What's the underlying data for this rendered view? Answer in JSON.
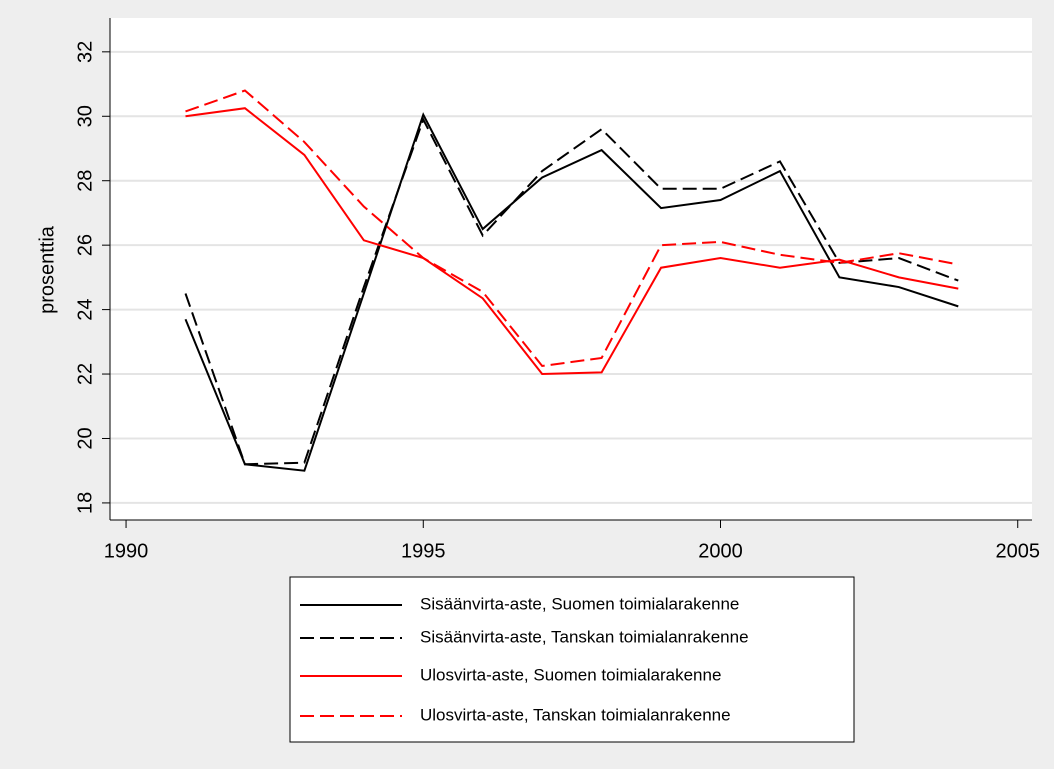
{
  "chart_data": {
    "type": "line",
    "ylabel": "prosenttia",
    "x": [
      1991,
      1992,
      1993,
      1994,
      1995,
      1996,
      1997,
      1998,
      1999,
      2000,
      2001,
      2002,
      2003,
      2004
    ],
    "series": [
      {
        "name": "Sisäänvirta-aste, Suomen toimialarakenne",
        "color": "#000000",
        "dash": false,
        "values": [
          23.7,
          19.2,
          19.0,
          24.5,
          30.05,
          26.5,
          28.1,
          28.95,
          27.15,
          27.4,
          28.3,
          25.0,
          24.7,
          24.1
        ]
      },
      {
        "name": "Sisäänvirta-aste, Tanskan toimialanrakenne",
        "color": "#000000",
        "dash": true,
        "values": [
          24.5,
          19.2,
          19.25,
          24.7,
          29.9,
          26.3,
          28.3,
          29.6,
          27.75,
          27.75,
          28.6,
          25.45,
          25.6,
          24.9
        ]
      },
      {
        "name": "Ulosvirta-aste, Suomen toimialarakenne",
        "color": "#ff0000",
        "dash": false,
        "values": [
          30.0,
          30.25,
          28.8,
          26.15,
          25.6,
          24.35,
          22.0,
          22.05,
          25.3,
          25.6,
          25.3,
          25.55,
          25.0,
          24.65
        ]
      },
      {
        "name": "Ulosvirta-aste, Tanskan toimialanrakenne",
        "color": "#ff0000",
        "dash": true,
        "values": [
          30.15,
          30.8,
          29.2,
          27.2,
          25.6,
          24.55,
          22.25,
          22.5,
          26.0,
          26.1,
          25.7,
          25.45,
          25.75,
          25.4
        ]
      }
    ],
    "xlim": [
      1989.73,
      2005.24
    ],
    "xticks": [
      1990,
      1995,
      2000,
      2005
    ],
    "ylim": [
      17.47,
      33.05
    ],
    "yticks": [
      18,
      20,
      22,
      24,
      26,
      28,
      30,
      32
    ],
    "grid": true,
    "legend": "bottom"
  }
}
